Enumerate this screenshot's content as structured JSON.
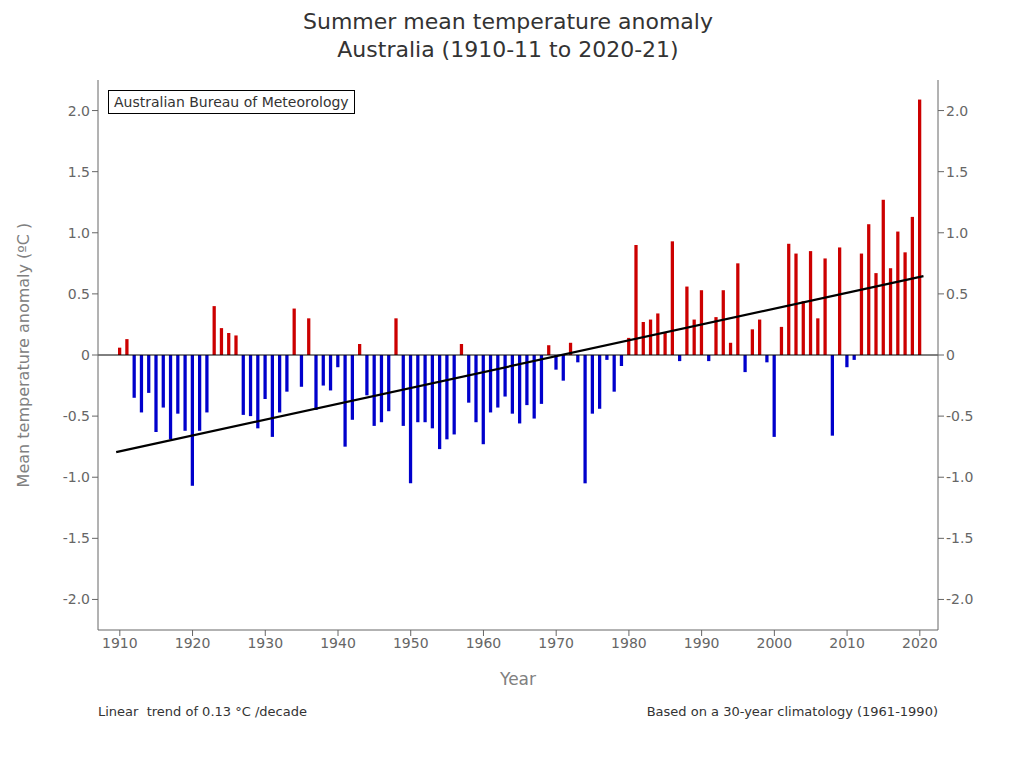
{
  "chart_data": {
    "type": "bar",
    "title": "Summer mean temperature anomaly",
    "subtitle": "Australia (1910-11 to 2020-21)",
    "xlabel": "Year",
    "ylabel": "Mean temperature anomaly (ºC )",
    "annotations": [
      "Australian Bureau of Meteorology",
      "Linear  trend of 0.13 °C /decade",
      "Based on a 30-year climatology (1961-1990)"
    ],
    "x": [
      1910,
      1911,
      1912,
      1913,
      1914,
      1915,
      1916,
      1917,
      1918,
      1919,
      1920,
      1921,
      1922,
      1923,
      1924,
      1925,
      1926,
      1927,
      1928,
      1929,
      1930,
      1931,
      1932,
      1933,
      1934,
      1935,
      1936,
      1937,
      1938,
      1939,
      1940,
      1941,
      1942,
      1943,
      1944,
      1945,
      1946,
      1947,
      1948,
      1949,
      1950,
      1951,
      1952,
      1953,
      1954,
      1955,
      1956,
      1957,
      1958,
      1959,
      1960,
      1961,
      1962,
      1963,
      1964,
      1965,
      1966,
      1967,
      1968,
      1969,
      1970,
      1971,
      1972,
      1973,
      1974,
      1975,
      1976,
      1977,
      1978,
      1979,
      1980,
      1981,
      1982,
      1983,
      1984,
      1985,
      1986,
      1987,
      1988,
      1989,
      1990,
      1991,
      1992,
      1993,
      1994,
      1995,
      1996,
      1997,
      1998,
      1999,
      2000,
      2001,
      2002,
      2003,
      2004,
      2005,
      2006,
      2007,
      2008,
      2009,
      2010,
      2011,
      2012,
      2013,
      2014,
      2015,
      2016,
      2017,
      2018,
      2019,
      2020
    ],
    "series": [
      {
        "type": "bar",
        "values": [
          0.06,
          0.13,
          -0.35,
          -0.47,
          -0.31,
          -0.63,
          -0.43,
          -0.69,
          -0.48,
          -0.62,
          -1.07,
          -0.62,
          -0.47,
          0.4,
          0.22,
          0.18,
          0.16,
          -0.49,
          -0.5,
          -0.6,
          -0.36,
          -0.67,
          -0.47,
          -0.3,
          0.38,
          -0.26,
          0.3,
          -0.45,
          -0.25,
          -0.29,
          -0.1,
          -0.75,
          -0.53,
          0.09,
          -0.33,
          -0.58,
          -0.55,
          -0.46,
          0.3,
          -0.58,
          -1.05,
          -0.55,
          -0.55,
          -0.6,
          -0.77,
          -0.69,
          -0.65,
          0.09,
          -0.39,
          -0.55,
          -0.73,
          -0.47,
          -0.43,
          -0.34,
          -0.48,
          -0.56,
          -0.41,
          -0.52,
          -0.4,
          0.08,
          -0.12,
          -0.21,
          0.1,
          -0.06,
          -1.05,
          -0.48,
          -0.44,
          -0.04,
          -0.3,
          -0.09,
          0.14,
          0.9,
          0.27,
          0.29,
          0.34,
          0.18,
          0.93,
          -0.05,
          0.56,
          0.29,
          0.53,
          -0.05,
          0.31,
          0.53,
          0.1,
          0.75,
          -0.14,
          0.21,
          0.29,
          -0.06,
          -0.67,
          0.23,
          0.91,
          0.83,
          0.44,
          0.85,
          0.3,
          0.79,
          -0.66,
          0.88,
          -0.1,
          -0.04,
          0.83,
          1.07,
          0.67,
          1.27,
          0.71,
          1.01,
          0.84,
          1.13,
          2.09
        ],
        "colors": [
          "#cc0000",
          "#cc0000",
          "#0000cc",
          "#0000cc",
          "#0000cc",
          "#0000cc",
          "#0000cc",
          "#0000cc",
          "#0000cc",
          "#0000cc",
          "#0000cc",
          "#0000cc",
          "#0000cc",
          "#cc0000",
          "#cc0000",
          "#cc0000",
          "#cc0000",
          "#0000cc",
          "#0000cc",
          "#0000cc",
          "#0000cc",
          "#0000cc",
          "#0000cc",
          "#0000cc",
          "#cc0000",
          "#0000cc",
          "#cc0000",
          "#0000cc",
          "#0000cc",
          "#0000cc",
          "#0000cc",
          "#0000cc",
          "#0000cc",
          "#cc0000",
          "#0000cc",
          "#0000cc",
          "#0000cc",
          "#0000cc",
          "#cc0000",
          "#0000cc",
          "#0000cc",
          "#0000cc",
          "#0000cc",
          "#0000cc",
          "#0000cc",
          "#0000cc",
          "#0000cc",
          "#cc0000",
          "#0000cc",
          "#0000cc",
          "#0000cc",
          "#0000cc",
          "#0000cc",
          "#0000cc",
          "#0000cc",
          "#0000cc",
          "#0000cc",
          "#0000cc",
          "#0000cc",
          "#cc0000",
          "#0000cc",
          "#0000cc",
          "#cc0000",
          "#0000cc",
          "#0000cc",
          "#0000cc",
          "#0000cc",
          "#0000cc",
          "#0000cc",
          "#0000cc",
          "#cc0000",
          "#cc0000",
          "#cc0000",
          "#cc0000",
          "#cc0000",
          "#cc0000",
          "#cc0000",
          "#0000cc",
          "#cc0000",
          "#cc0000",
          "#cc0000",
          "#0000cc",
          "#cc0000",
          "#cc0000",
          "#cc0000",
          "#cc0000",
          "#0000cc",
          "#cc0000",
          "#cc0000",
          "#0000cc",
          "#0000cc",
          "#cc0000",
          "#cc0000",
          "#cc0000",
          "#cc0000",
          "#cc0000",
          "#cc0000",
          "#cc0000",
          "#0000cc",
          "#cc0000",
          "#0000cc",
          "#0000cc",
          "#cc0000",
          "#cc0000",
          "#cc0000",
          "#cc0000",
          "#cc0000",
          "#cc0000",
          "#cc0000",
          "#cc0000",
          "#cc0000"
        ]
      },
      {
        "type": "line",
        "x": [
          1909.5,
          2020.5
        ],
        "values": [
          -0.795,
          0.645
        ],
        "color": "#000000"
      }
    ],
    "xlim": [
      1907,
      2022.5
    ],
    "xticks": [
      1910,
      1920,
      1930,
      1940,
      1950,
      1960,
      1970,
      1980,
      1990,
      2000,
      2010,
      2020
    ],
    "ylim": [
      -2.25,
      2.25
    ],
    "yticks": [
      {
        "value": -2.0,
        "label": "-2.0"
      },
      -1.5,
      {
        "value": -1.0,
        "label": "-1.0"
      },
      -0.5,
      0,
      0.5,
      {
        "value": 1.0,
        "label": "1.0"
      },
      1.5,
      {
        "value": 2.0,
        "label": "2.0"
      }
    ],
    "y2lim": [
      -2.25,
      2.25
    ],
    "y2ticks": [
      {
        "value": -2.0,
        "label": "-2.0"
      },
      -1.5,
      {
        "value": -1.0,
        "label": "-1.0"
      },
      -0.5,
      0,
      0.5,
      {
        "value": 1.0,
        "label": "1.0"
      },
      1.5,
      {
        "value": 2.0,
        "label": "2.0"
      }
    ],
    "grid": false
  }
}
